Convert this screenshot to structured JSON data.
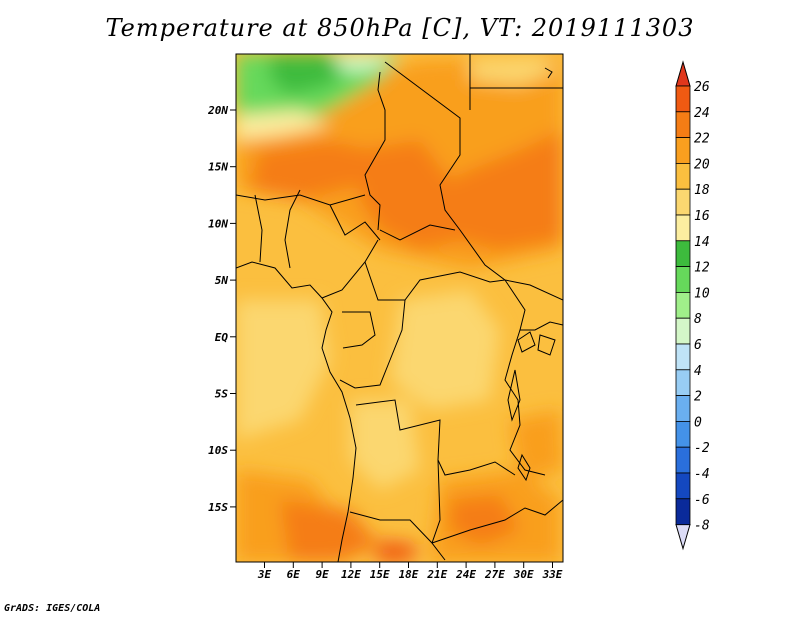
{
  "title": "Temperature at 850hPa [C], VT: 2019111303",
  "credit": "GrADS: IGES/COLA",
  "lat_labels": [
    "20N",
    "15N",
    "10N",
    "5N",
    "EQ",
    "5S",
    "10S",
    "15S"
  ],
  "lon_labels": [
    "3E",
    "6E",
    "9E",
    "12E",
    "15E",
    "18E",
    "21E",
    "24E",
    "27E",
    "30E",
    "33E"
  ],
  "colorbar": {
    "labels": [
      "26",
      "24",
      "22",
      "20",
      "18",
      "16",
      "14",
      "12",
      "10",
      "8",
      "6",
      "4",
      "2",
      "0",
      "-2",
      "-4",
      "-6",
      "-8"
    ],
    "colors": [
      "#e0371c",
      "#f05a12",
      "#f57d15",
      "#f99f1f",
      "#fbbf3f",
      "#fbd770",
      "#fceea0",
      "#3dbb3d",
      "#66d95b",
      "#a0ef8a",
      "#d4f7c8",
      "#bfe3f7",
      "#98cdf4",
      "#6aaff0",
      "#4492e8",
      "#2a6fdc",
      "#1448c0",
      "#0a2a9a",
      "#061170"
    ]
  }
}
